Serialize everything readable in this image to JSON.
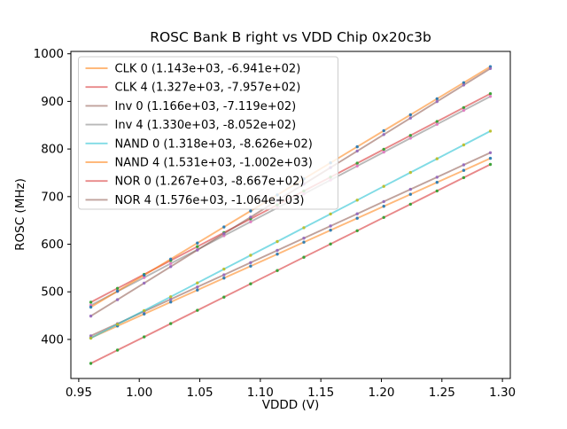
{
  "title": "ROSC Bank B right vs VDD Chip 0x20c3b",
  "axes": {
    "xlabel": "VDDD (V)",
    "ylabel": "ROSC (MHz)",
    "x_tick_labels": [
      "0.95",
      "1.00",
      "1.05",
      "1.10",
      "1.15",
      "1.20",
      "1.25",
      "1.30"
    ],
    "x_tick_values": [
      0.95,
      1.0,
      1.05,
      1.1,
      1.15,
      1.2,
      1.25,
      1.3
    ],
    "y_tick_labels": [
      "400",
      "500",
      "600",
      "700",
      "800",
      "900",
      "1000"
    ],
    "y_tick_values": [
      400,
      500,
      600,
      700,
      800,
      900,
      1000
    ],
    "xlim": [
      0.9435,
      1.3065
    ],
    "ylim": [
      318,
      1005
    ]
  },
  "chart_data": {
    "type": "line",
    "title": "ROSC Bank B right vs VDD Chip 0x20c3b",
    "xlabel": "VDDD (V)",
    "ylabel": "ROSC (MHz)",
    "xlim": [
      0.9435,
      1.3065
    ],
    "ylim": [
      318,
      1005
    ],
    "grid": false,
    "legend_position": "upper left",
    "legend_note": "legend shows (slope, intercept) of linear fit ROSC = slope*VDD + intercept",
    "x": [
      0.96,
      0.982,
      1.004,
      1.026,
      1.048,
      1.07,
      1.092,
      1.114,
      1.136,
      1.158,
      1.18,
      1.202,
      1.224,
      1.246,
      1.268,
      1.29
    ],
    "series": [
      {
        "name": "CLK 0",
        "legend_label": "CLK 0 (1.143e+03, -6.941e+02)",
        "slope": 1143,
        "intercept": -694.1,
        "line_color": "#ff7f0e",
        "marker_color": "#1f77b4",
        "values": [
          403.2,
          428.3,
          453.5,
          478.6,
          503.8,
          528.9,
          554.1,
          579.2,
          604.3,
          629.5,
          654.6,
          679.8,
          704.9,
          730.1,
          755.2,
          780.4
        ]
      },
      {
        "name": "CLK 4",
        "legend_label": "CLK 4 (1.327e+03, -7.957e+02)",
        "slope": 1327,
        "intercept": -795.7,
        "line_color": "#d62728",
        "marker_color": "#2ca02c",
        "values": [
          478.2,
          507.4,
          536.6,
          565.8,
          595.0,
          624.2,
          653.4,
          682.6,
          711.8,
          741.0,
          770.2,
          799.3,
          828.5,
          857.7,
          886.9,
          916.1
        ]
      },
      {
        "name": "Inv 0",
        "legend_label": "Inv 0 (1.166e+03, -7.119e+02)",
        "slope": 1166,
        "intercept": -711.9,
        "line_color": "#8c564b",
        "marker_color": "#9467bd",
        "values": [
          407.5,
          433.1,
          458.8,
          484.4,
          510.1,
          535.7,
          561.4,
          587.0,
          612.7,
          638.3,
          664.0,
          689.6,
          715.3,
          740.9,
          766.6,
          792.2
        ]
      },
      {
        "name": "Inv 4",
        "legend_label": "Inv 4 (1.330e+03, -8.052e+02)",
        "slope": 1330,
        "intercept": -805.2,
        "line_color": "#7f7f7f",
        "marker_color": "#e377c2",
        "values": [
          471.6,
          500.9,
          530.1,
          559.4,
          588.6,
          617.9,
          647.2,
          676.4,
          705.7,
          734.9,
          764.2,
          793.5,
          822.7,
          852.0,
          881.2,
          910.5
        ]
      },
      {
        "name": "NAND 0",
        "legend_label": "NAND 0 (1.318e+03, -8.626e+02)",
        "slope": 1318,
        "intercept": -862.6,
        "line_color": "#17becf",
        "marker_color": "#bcbd22",
        "values": [
          402.7,
          431.7,
          460.7,
          489.7,
          518.7,
          547.7,
          576.7,
          605.6,
          634.6,
          663.6,
          692.6,
          721.6,
          750.6,
          779.6,
          808.6,
          837.6
        ]
      },
      {
        "name": "NAND 4",
        "legend_label": "NAND 4 (1.531e+03, -1.002e+03)",
        "slope": 1531,
        "intercept": -1002,
        "line_color": "#ff7f0e",
        "marker_color": "#1f77b4",
        "values": [
          467.8,
          501.4,
          535.1,
          568.8,
          602.5,
          636.2,
          669.9,
          703.5,
          737.2,
          770.9,
          804.6,
          838.3,
          871.9,
          905.6,
          939.3,
          973.0
        ]
      },
      {
        "name": "NOR 0",
        "legend_label": "NOR 0 (1.267e+03, -8.667e+02)",
        "slope": 1267,
        "intercept": -866.7,
        "line_color": "#d62728",
        "marker_color": "#2ca02c",
        "values": [
          349.6,
          377.5,
          405.4,
          433.2,
          461.1,
          489.0,
          516.9,
          544.7,
          572.6,
          600.5,
          628.4,
          656.2,
          684.1,
          712.0,
          739.9,
          767.7
        ]
      },
      {
        "name": "NOR 4",
        "legend_label": "NOR 4 (1.576e+03, -1.064e+03)",
        "slope": 1576,
        "intercept": -1064,
        "line_color": "#8c564b",
        "marker_color": "#9467bd",
        "values": [
          449.0,
          483.6,
          518.3,
          553.0,
          587.7,
          622.3,
          657.0,
          691.7,
          726.3,
          761.0,
          795.7,
          830.4,
          865.0,
          899.7,
          934.4,
          969.0
        ]
      }
    ]
  },
  "style": {
    "line_opacity": 0.55,
    "spine_color": "#000000",
    "legend_border_color": "#cccccc",
    "legend_bg": "#ffffff",
    "legend_bg_opacity": 0.8
  }
}
